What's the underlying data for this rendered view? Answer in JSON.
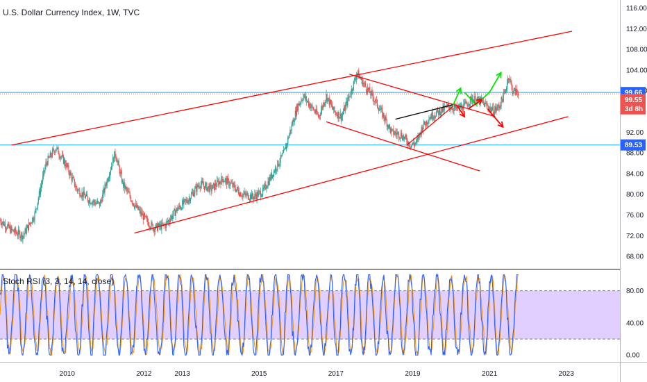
{
  "chart_data": {
    "type": "candlestick",
    "title": "U.S. Dollar Currency Index, 1W, TVC",
    "x_ticks": [
      "2010",
      "2012",
      "2013",
      "2015",
      "2017",
      "2019",
      "2021",
      "2023"
    ],
    "price_axis": {
      "ylim": [
        66,
        117
      ],
      "ticks": [
        "116.00",
        "112.00",
        "108.00",
        "104.00",
        "100.00",
        "96.00",
        "92.00",
        "88.00",
        "84.00",
        "80.00",
        "76.00",
        "72.00",
        "68.00"
      ]
    },
    "price_path": [
      [
        2008.0,
        75
      ],
      [
        2008.3,
        73
      ],
      [
        2008.6,
        72
      ],
      [
        2008.9,
        76
      ],
      [
        2009.2,
        86
      ],
      [
        2009.45,
        89
      ],
      [
        2009.7,
        86
      ],
      [
        2010.0,
        81
      ],
      [
        2010.3,
        79
      ],
      [
        2010.6,
        78
      ],
      [
        2010.8,
        83
      ],
      [
        2011.0,
        88
      ],
      [
        2011.2,
        82
      ],
      [
        2011.5,
        78
      ],
      [
        2011.8,
        75
      ],
      [
        2012.0,
        73.5
      ],
      [
        2012.3,
        74
      ],
      [
        2012.6,
        77
      ],
      [
        2012.9,
        79
      ],
      [
        2013.2,
        82
      ],
      [
        2013.5,
        81
      ],
      [
        2013.8,
        83
      ],
      [
        2014.0,
        82
      ],
      [
        2014.3,
        80
      ],
      [
        2014.6,
        79.5
      ],
      [
        2014.85,
        80.5
      ],
      [
        2015.1,
        84
      ],
      [
        2015.4,
        88
      ],
      [
        2015.55,
        92
      ],
      [
        2015.75,
        97
      ],
      [
        2015.9,
        99
      ],
      [
        2016.1,
        97
      ],
      [
        2016.3,
        95
      ],
      [
        2016.5,
        99
      ],
      [
        2016.7,
        96
      ],
      [
        2016.9,
        95
      ],
      [
        2017.15,
        100
      ],
      [
        2017.3,
        103.5
      ],
      [
        2017.5,
        101
      ],
      [
        2017.7,
        99
      ],
      [
        2018.0,
        95
      ],
      [
        2018.2,
        92
      ],
      [
        2018.45,
        91.5
      ],
      [
        2018.7,
        89.5
      ],
      [
        2018.85,
        90
      ],
      [
        2019.0,
        93
      ],
      [
        2019.2,
        95
      ],
      [
        2019.45,
        96
      ],
      [
        2019.7,
        97
      ],
      [
        2019.9,
        96.5
      ],
      [
        2020.1,
        97
      ],
      [
        2020.3,
        98.5
      ],
      [
        2020.5,
        98
      ],
      [
        2020.7,
        97
      ],
      [
        2020.85,
        96
      ],
      [
        2021.0,
        97
      ],
      [
        2021.15,
        99.5
      ],
      [
        2021.25,
        103
      ],
      [
        2021.35,
        100
      ],
      [
        2021.5,
        99.6
      ]
    ],
    "horizontal_levels": {
      "support": 89.53,
      "resistance": 99.66
    },
    "price_tags": [
      {
        "label": "99.66",
        "value": 99.66,
        "color": "#2962ff"
      },
      {
        "label": "99.55",
        "value": 98.3,
        "color": "#ef5350"
      },
      {
        "label": "3d 8h",
        "value": 96.5,
        "color": "#ef5350"
      },
      {
        "label": "89.53",
        "value": 89.53,
        "color": "#2962ff"
      }
    ],
    "trend_lines": [
      {
        "from": [
          2008.3,
          89.5
        ],
        "to": [
          2022.9,
          111.5
        ],
        "color": "#ff0000"
      },
      {
        "from": [
          2011.5,
          72.5
        ],
        "to": [
          2022.8,
          95
        ],
        "color": "#ff0000"
      },
      {
        "from": [
          2017.1,
          103.2
        ],
        "to": [
          2020.9,
          95
        ],
        "color": "#ff0000"
      },
      {
        "from": [
          2016.5,
          94
        ],
        "to": [
          2020.5,
          84.5
        ],
        "color": "#ff0000"
      },
      {
        "from": [
          2018.3,
          94.5
        ],
        "to": [
          2019.8,
          97.3
        ],
        "color": "#000000"
      },
      {
        "from": [
          2018.6,
          89.5
        ],
        "to": [
          2019.8,
          97
        ],
        "color": "#ff0000"
      }
    ],
    "arrows": [
      {
        "points": [
          [
            2019.8,
            97.2
          ],
          [
            2020.0,
            100.5
          ]
        ],
        "color": "#00e600"
      },
      {
        "points": [
          [
            2020.1,
            99.7
          ],
          [
            2020.4,
            97.3
          ],
          [
            2020.75,
            99.7
          ],
          [
            2021.05,
            103.5
          ]
        ],
        "color": "#00e600"
      },
      {
        "points": [
          [
            2019.9,
            97.2
          ],
          [
            2020.1,
            95
          ]
        ],
        "color": "#ff0000"
      },
      {
        "points": [
          [
            2020.2,
            96.5
          ],
          [
            2020.55,
            98.3
          ]
        ],
        "color": "#ff0000"
      },
      {
        "points": [
          [
            2020.7,
            96.5
          ],
          [
            2021.1,
            93
          ]
        ],
        "color": "#ff0000"
      }
    ],
    "indicator": {
      "name": "Stoch RSI (3, 3, 14, 14, close)",
      "ylim": [
        -5,
        103
      ],
      "ticks": [
        "80.00",
        "40.00",
        "0.00"
      ],
      "band": [
        20,
        80
      ],
      "k_color": "#2962ff",
      "d_color": "#ff9800",
      "band_color": "#e1cfff"
    }
  }
}
